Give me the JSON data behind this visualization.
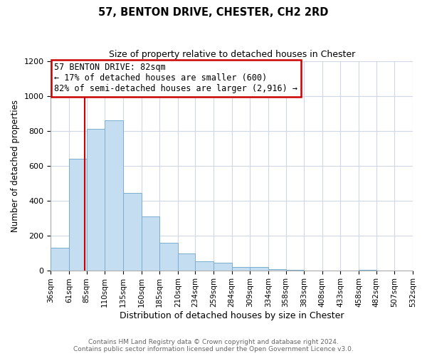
{
  "title": "57, BENTON DRIVE, CHESTER, CH2 2RD",
  "subtitle": "Size of property relative to detached houses in Chester",
  "xlabel": "Distribution of detached houses by size in Chester",
  "ylabel": "Number of detached properties",
  "bar_color": "#c5ddf0",
  "bar_edge_color": "#7aaed0",
  "annotation_text": "57 BENTON DRIVE: 82sqm\n← 17% of detached houses are smaller (600)\n82% of semi-detached houses are larger (2,916) →",
  "property_line_x": 82,
  "property_line_color": "#cc0000",
  "bins": [
    36,
    61,
    85,
    110,
    135,
    160,
    185,
    210,
    234,
    259,
    284,
    309,
    334,
    358,
    383,
    408,
    433,
    458,
    482,
    507,
    532
  ],
  "counts": [
    130,
    640,
    810,
    860,
    445,
    308,
    158,
    95,
    52,
    43,
    18,
    20,
    5,
    2,
    0,
    0,
    0,
    1,
    0,
    0
  ],
  "xlim": [
    36,
    532
  ],
  "ylim": [
    0,
    1200
  ],
  "yticks": [
    0,
    200,
    400,
    600,
    800,
    1000,
    1200
  ],
  "tick_labels": [
    "36sqm",
    "61sqm",
    "85sqm",
    "110sqm",
    "135sqm",
    "160sqm",
    "185sqm",
    "210sqm",
    "234sqm",
    "259sqm",
    "284sqm",
    "309sqm",
    "334sqm",
    "358sqm",
    "383sqm",
    "408sqm",
    "433sqm",
    "458sqm",
    "482sqm",
    "507sqm",
    "532sqm"
  ],
  "footer_line1": "Contains HM Land Registry data © Crown copyright and database right 2024.",
  "footer_line2": "Contains public sector information licensed under the Open Government Licence v3.0.",
  "background_color": "#ffffff",
  "grid_color": "#d0d8e8"
}
